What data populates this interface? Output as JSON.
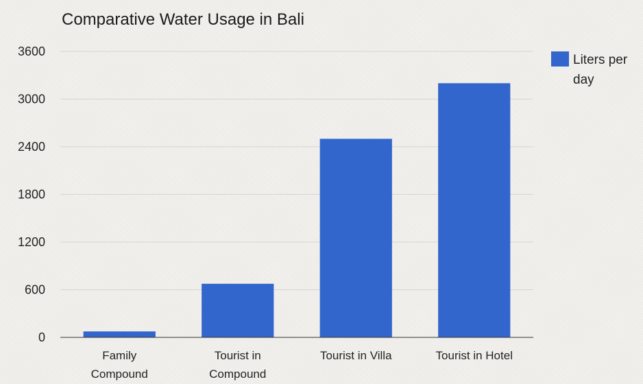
{
  "chart_data": {
    "type": "bar",
    "title": "Comparative Water Usage in Bali",
    "categories": [
      [
        "Family",
        "Compound"
      ],
      [
        "Tourist in",
        "Compound"
      ],
      [
        "Tourist in Villa"
      ],
      [
        "Tourist in Hotel"
      ]
    ],
    "series": [
      {
        "name": "Liters per day",
        "legend_lines": [
          "Liters per",
          "day"
        ],
        "color": "#3366cc",
        "values": [
          75,
          675,
          2500,
          3200
        ]
      }
    ],
    "yticks": [
      0,
      600,
      1200,
      1800,
      2400,
      3000,
      3600
    ],
    "ylim": [
      0,
      3600
    ],
    "grid": true,
    "legend_position": "right"
  }
}
